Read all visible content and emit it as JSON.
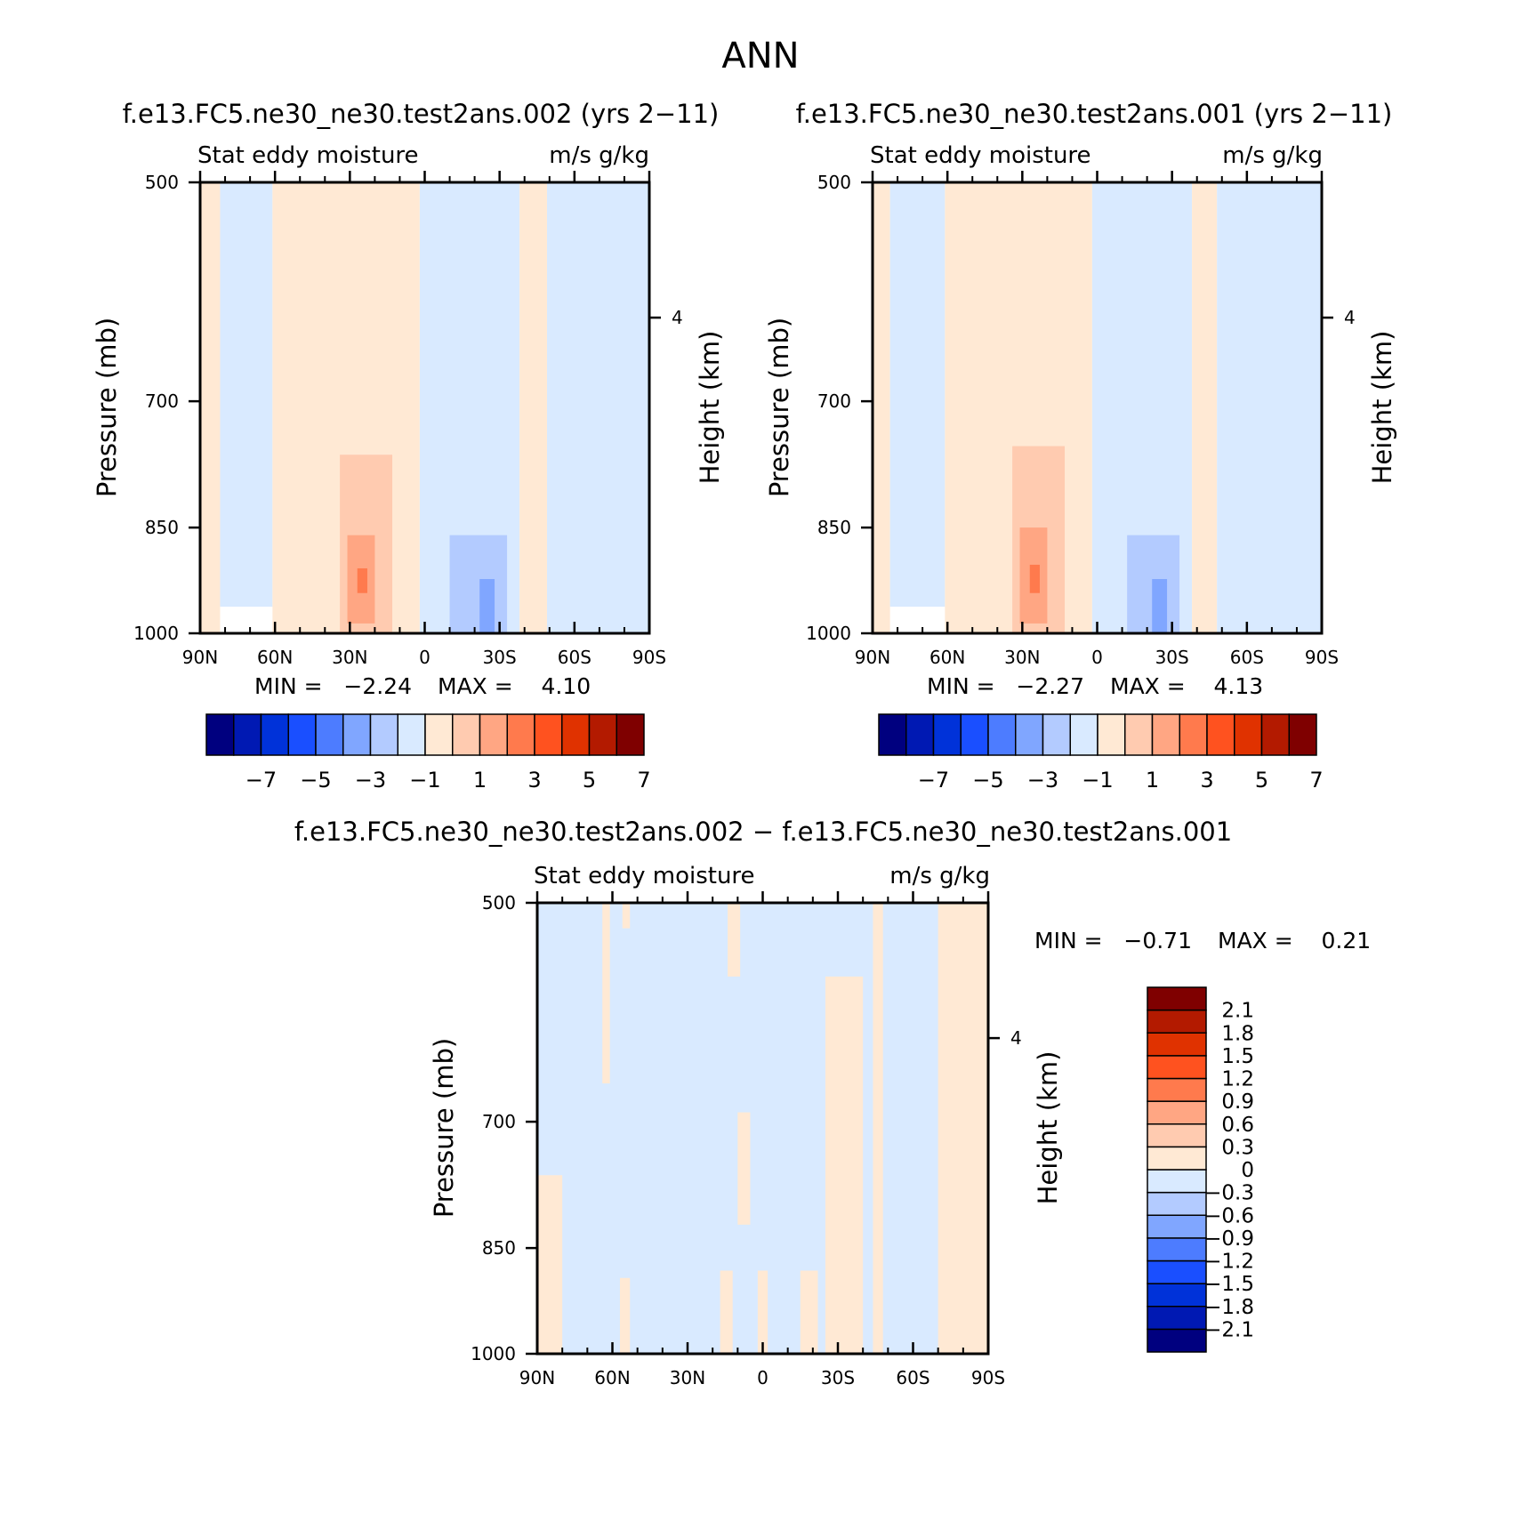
{
  "figure_title": "ANN",
  "colors": {
    "main_levels": [
      "#00007f",
      "#0019b3",
      "#0032d9",
      "#1a4fff",
      "#4d7cff",
      "#80a6ff",
      "#b3cbff",
      "#d9eaff",
      "#ffe9d4",
      "#ffcbb0",
      "#ffa683",
      "#ff7a4d",
      "#ff521f",
      "#e03200",
      "#b31a00",
      "#7f0000"
    ],
    "diff_levels": [
      "#00007f",
      "#0019b3",
      "#0032d9",
      "#1a4fff",
      "#4d7cff",
      "#80a6ff",
      "#b3cbff",
      "#d9eaff",
      "#ffe9d4",
      "#ffcbb0",
      "#ffa683",
      "#ff7a4d",
      "#ff521f",
      "#e03200",
      "#b31a00",
      "#7f0000"
    ]
  },
  "chart_data": [
    {
      "type": "heatmap",
      "panel": "case",
      "title": "f.e13.FC5.ne30_ne30.test2ans.002 (yrs 2−11)",
      "left_label": "Stat eddy moisture",
      "right_label": "m/s g/kg",
      "ylabel": "Pressure (mb)",
      "y2label": "Height (km)",
      "xticks": [
        "90N",
        "60N",
        "30N",
        "0",
        "30S",
        "60S",
        "90S"
      ],
      "x_lat": [
        90,
        60,
        30,
        0,
        -30,
        -60,
        -90
      ],
      "yticks": [
        500,
        700,
        850,
        1000
      ],
      "ylim": [
        500,
        1000
      ],
      "y2ticks": [
        "4"
      ],
      "min_text": "MIN =   −2.24",
      "max_text": "MAX =    4.10",
      "min": -2.24,
      "max": 4.1,
      "colorbar_labels": [
        "−7",
        "−5",
        "−3",
        "−1",
        "1",
        "3",
        "5",
        "7"
      ],
      "levels": [
        -7,
        -6,
        -5,
        -4,
        -3,
        -2,
        -1,
        0,
        1,
        2,
        3,
        4,
        5,
        6,
        7
      ],
      "field": [
        {
          "lat_from": 90,
          "lat_to": 82,
          "p_from": 500,
          "p_to": 1000,
          "value": 0.3
        },
        {
          "lat_from": 82,
          "lat_to": 61,
          "p_from": 500,
          "p_to": 960,
          "value": -0.4
        },
        {
          "lat_from": 61,
          "lat_to": 2,
          "p_from": 500,
          "p_to": 1000,
          "value": 0.5
        },
        {
          "lat_from": 2,
          "lat_to": -38,
          "p_from": 500,
          "p_to": 1000,
          "value": -0.5
        },
        {
          "lat_from": -38,
          "lat_to": -49,
          "p_from": 500,
          "p_to": 1000,
          "value": 0.3
        },
        {
          "lat_from": -49,
          "lat_to": -90,
          "p_from": 500,
          "p_to": 1000,
          "value": -0.4
        },
        {
          "lat_from": 34,
          "lat_to": 13,
          "p_from": 760,
          "p_to": 1000,
          "value": 1.5
        },
        {
          "lat_from": 31,
          "lat_to": 20,
          "p_from": 860,
          "p_to": 985,
          "value": 2.6
        },
        {
          "lat_from": 27,
          "lat_to": 23,
          "p_from": 905,
          "p_to": 940,
          "value": 3.8
        },
        {
          "lat_from": -10,
          "lat_to": -33,
          "p_from": 860,
          "p_to": 1000,
          "value": -1.4
        },
        {
          "lat_from": -22,
          "lat_to": -28,
          "p_from": 920,
          "p_to": 1000,
          "value": -2.2
        }
      ]
    },
    {
      "type": "heatmap",
      "panel": "control",
      "title": "f.e13.FC5.ne30_ne30.test2ans.001 (yrs 2−11)",
      "left_label": "Stat eddy moisture",
      "right_label": "m/s g/kg",
      "ylabel": "Pressure (mb)",
      "y2label": "Height (km)",
      "xticks": [
        "90N",
        "60N",
        "30N",
        "0",
        "30S",
        "60S",
        "90S"
      ],
      "x_lat": [
        90,
        60,
        30,
        0,
        -30,
        -60,
        -90
      ],
      "yticks": [
        500,
        700,
        850,
        1000
      ],
      "ylim": [
        500,
        1000
      ],
      "y2ticks": [
        "4"
      ],
      "min_text": "MIN =   −2.27",
      "max_text": "MAX =    4.13",
      "min": -2.27,
      "max": 4.13,
      "colorbar_labels": [
        "−7",
        "−5",
        "−3",
        "−1",
        "1",
        "3",
        "5",
        "7"
      ],
      "levels": [
        -7,
        -6,
        -5,
        -4,
        -3,
        -2,
        -1,
        0,
        1,
        2,
        3,
        4,
        5,
        6,
        7
      ],
      "field": [
        {
          "lat_from": 90,
          "lat_to": 83,
          "p_from": 500,
          "p_to": 1000,
          "value": 0.3
        },
        {
          "lat_from": 83,
          "lat_to": 61,
          "p_from": 500,
          "p_to": 960,
          "value": -0.4
        },
        {
          "lat_from": 61,
          "lat_to": 2,
          "p_from": 500,
          "p_to": 1000,
          "value": 0.5
        },
        {
          "lat_from": 2,
          "lat_to": -38,
          "p_from": 500,
          "p_to": 1000,
          "value": -0.5
        },
        {
          "lat_from": -38,
          "lat_to": -48,
          "p_from": 500,
          "p_to": 1000,
          "value": 0.3
        },
        {
          "lat_from": -48,
          "lat_to": -90,
          "p_from": 500,
          "p_to": 1000,
          "value": -0.4
        },
        {
          "lat_from": 34,
          "lat_to": 13,
          "p_from": 750,
          "p_to": 1000,
          "value": 1.5
        },
        {
          "lat_from": 31,
          "lat_to": 20,
          "p_from": 850,
          "p_to": 985,
          "value": 2.6
        },
        {
          "lat_from": 27,
          "lat_to": 23,
          "p_from": 900,
          "p_to": 940,
          "value": 3.8
        },
        {
          "lat_from": -12,
          "lat_to": -33,
          "p_from": 860,
          "p_to": 1000,
          "value": -1.4
        },
        {
          "lat_from": -22,
          "lat_to": -28,
          "p_from": 920,
          "p_to": 1000,
          "value": -2.2
        }
      ]
    },
    {
      "type": "heatmap",
      "panel": "difference",
      "title": "f.e13.FC5.ne30_ne30.test2ans.002 − f.e13.FC5.ne30_ne30.test2ans.001",
      "left_label": "Stat eddy moisture",
      "right_label": "m/s g/kg",
      "ylabel": "Pressure (mb)",
      "y2label": "Height (km)",
      "xticks": [
        "90N",
        "60N",
        "30N",
        "0",
        "30S",
        "60S",
        "90S"
      ],
      "x_lat": [
        90,
        60,
        30,
        0,
        -30,
        -60,
        -90
      ],
      "yticks": [
        500,
        700,
        850,
        1000
      ],
      "ylim": [
        500,
        1000
      ],
      "y2ticks": [
        "4"
      ],
      "min_text": "MIN =   −0.71",
      "max_text": "MAX =    0.21",
      "min": -0.71,
      "max": 0.21,
      "colorbar_labels": [
        "2.1",
        "1.8",
        "1.5",
        "1.2",
        "0.9",
        "0.6",
        "0.3",
        "0",
        "−0.3",
        "−0.6",
        "−0.9",
        "−1.2",
        "−1.5",
        "−1.8",
        "−2.1"
      ],
      "levels": [
        -2.1,
        -1.8,
        -1.5,
        -1.2,
        -0.9,
        -0.6,
        -0.3,
        0,
        0.3,
        0.6,
        0.9,
        1.2,
        1.5,
        1.8,
        2.1
      ],
      "field": [
        {
          "lat_from": 90,
          "lat_to": -90,
          "p_from": 500,
          "p_to": 1000,
          "value": -0.1
        },
        {
          "lat_from": 90,
          "lat_to": 80,
          "p_from": 760,
          "p_to": 1000,
          "value": 0.1
        },
        {
          "lat_from": 64,
          "lat_to": 61,
          "p_from": 500,
          "p_to": 660,
          "value": 0.1
        },
        {
          "lat_from": 56,
          "lat_to": 53,
          "p_from": 500,
          "p_to": 520,
          "value": 0.1
        },
        {
          "lat_from": 57,
          "lat_to": 53,
          "p_from": 890,
          "p_to": 1000,
          "value": 0.1
        },
        {
          "lat_from": 14,
          "lat_to": 9,
          "p_from": 500,
          "p_to": 560,
          "value": 0.1
        },
        {
          "lat_from": 10,
          "lat_to": 5,
          "p_from": 690,
          "p_to": 820,
          "value": 0.1
        },
        {
          "lat_from": 17,
          "lat_to": 12,
          "p_from": 880,
          "p_to": 1000,
          "value": 0.1
        },
        {
          "lat_from": 2,
          "lat_to": -2,
          "p_from": 880,
          "p_to": 1000,
          "value": 0.1
        },
        {
          "lat_from": -15,
          "lat_to": -22,
          "p_from": 880,
          "p_to": 1000,
          "value": 0.1
        },
        {
          "lat_from": -25,
          "lat_to": -40,
          "p_from": 560,
          "p_to": 1000,
          "value": 0.1
        },
        {
          "lat_from": -44,
          "lat_to": -48,
          "p_from": 500,
          "p_to": 1000,
          "value": 0.1
        },
        {
          "lat_from": -70,
          "lat_to": -90,
          "p_from": 500,
          "p_to": 1000,
          "value": 0.1
        }
      ]
    }
  ]
}
